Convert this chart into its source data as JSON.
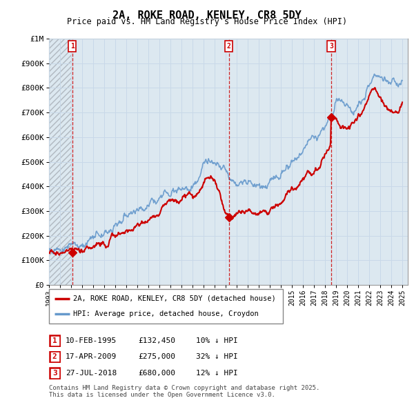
{
  "title": "2A, ROKE ROAD, KENLEY, CR8 5DY",
  "subtitle": "Price paid vs. HM Land Registry's House Price Index (HPI)",
  "ylabel_ticks": [
    "£0",
    "£100K",
    "£200K",
    "£300K",
    "£400K",
    "£500K",
    "£600K",
    "£700K",
    "£800K",
    "£900K",
    "£1M"
  ],
  "ytick_values": [
    0,
    100000,
    200000,
    300000,
    400000,
    500000,
    600000,
    700000,
    800000,
    900000,
    1000000
  ],
  "ylim": [
    0,
    1000000
  ],
  "xlim_start": 1993.0,
  "xlim_end": 2025.5,
  "sales": [
    {
      "date_num": 1995.11,
      "price": 132450,
      "label": "1"
    },
    {
      "date_num": 2009.29,
      "price": 275000,
      "label": "2"
    },
    {
      "date_num": 2018.56,
      "price": 680000,
      "label": "3"
    }
  ],
  "sale_color": "#cc0000",
  "hpi_color": "#6699cc",
  "grid_color": "#c8d8e8",
  "bg_color": "#dce8f0",
  "legend_entries": [
    "2A, ROKE ROAD, KENLEY, CR8 5DY (detached house)",
    "HPI: Average price, detached house, Croydon"
  ],
  "table_rows": [
    {
      "num": "1",
      "date": "10-FEB-1995",
      "price": "£132,450",
      "pct": "10% ↓ HPI"
    },
    {
      "num": "2",
      "date": "17-APR-2009",
      "price": "£275,000",
      "pct": "32% ↓ HPI"
    },
    {
      "num": "3",
      "date": "27-JUL-2018",
      "price": "£680,000",
      "pct": "12% ↓ HPI"
    }
  ],
  "footnote": "Contains HM Land Registry data © Crown copyright and database right 2025.\nThis data is licensed under the Open Government Licence v3.0.",
  "dashed_line_color": "#cc0000",
  "marker_box_color": "#cc0000",
  "hpi_anchors_x": [
    1993.0,
    1993.5,
    1994.0,
    1994.5,
    1995.0,
    1995.5,
    1996.0,
    1996.5,
    1997.0,
    1997.5,
    1998.0,
    1998.5,
    1999.0,
    1999.5,
    2000.0,
    2000.5,
    2001.0,
    2001.5,
    2002.0,
    2002.5,
    2003.0,
    2003.5,
    2004.0,
    2004.5,
    2005.0,
    2005.5,
    2006.0,
    2006.5,
    2007.0,
    2007.5,
    2008.0,
    2008.5,
    2009.0,
    2009.5,
    2010.0,
    2010.5,
    2011.0,
    2011.5,
    2012.0,
    2012.5,
    2013.0,
    2013.5,
    2014.0,
    2014.5,
    2015.0,
    2015.5,
    2016.0,
    2016.5,
    2017.0,
    2017.5,
    2018.0,
    2018.5,
    2019.0,
    2019.5,
    2020.0,
    2020.5,
    2021.0,
    2021.5,
    2022.0,
    2022.5,
    2023.0,
    2023.5,
    2024.0,
    2024.5,
    2025.0
  ],
  "hpi_anchors_y": [
    148000,
    150000,
    155000,
    158000,
    162000,
    165000,
    170000,
    178000,
    188000,
    200000,
    210000,
    222000,
    235000,
    248000,
    262000,
    278000,
    295000,
    310000,
    325000,
    345000,
    365000,
    382000,
    392000,
    398000,
    400000,
    403000,
    408000,
    415000,
    470000,
    490000,
    480000,
    460000,
    435000,
    415000,
    410000,
    420000,
    425000,
    422000,
    415000,
    418000,
    428000,
    445000,
    465000,
    488000,
    510000,
    530000,
    555000,
    580000,
    605000,
    630000,
    648000,
    665000,
    755000,
    745000,
    720000,
    700000,
    730000,
    770000,
    830000,
    870000,
    855000,
    840000,
    830000,
    820000,
    820000
  ],
  "prop_anchors_x": [
    1993.0,
    1993.5,
    1994.0,
    1994.5,
    1995.0,
    1995.11,
    1995.5,
    1996.0,
    1996.5,
    1997.0,
    1997.5,
    1998.0,
    1998.5,
    1999.0,
    1999.5,
    2000.0,
    2000.5,
    2001.0,
    2001.5,
    2002.0,
    2002.5,
    2003.0,
    2003.5,
    2004.0,
    2004.5,
    2005.0,
    2005.5,
    2006.0,
    2006.5,
    2007.0,
    2007.5,
    2008.0,
    2008.5,
    2009.0,
    2009.29,
    2009.5,
    2010.0,
    2010.5,
    2011.0,
    2011.5,
    2012.0,
    2012.5,
    2013.0,
    2013.5,
    2014.0,
    2014.5,
    2015.0,
    2015.5,
    2016.0,
    2016.5,
    2017.0,
    2017.5,
    2018.0,
    2018.5,
    2018.56,
    2019.0,
    2019.5,
    2020.0,
    2020.5,
    2021.0,
    2021.5,
    2022.0,
    2022.5,
    2023.0,
    2023.5,
    2024.0,
    2024.5,
    2025.0
  ],
  "prop_anchors_y": [
    128000,
    130000,
    132000,
    133000,
    132000,
    132450,
    133000,
    136000,
    142000,
    152000,
    162000,
    172000,
    182000,
    192000,
    202000,
    215000,
    228000,
    242000,
    255000,
    268000,
    285000,
    305000,
    322000,
    338000,
    348000,
    352000,
    355000,
    360000,
    368000,
    418000,
    435000,
    425000,
    355000,
    278000,
    275000,
    278000,
    288000,
    295000,
    298000,
    295000,
    290000,
    295000,
    305000,
    320000,
    338000,
    358000,
    378000,
    400000,
    425000,
    452000,
    475000,
    500000,
    532000,
    560000,
    680000,
    668000,
    648000,
    630000,
    655000,
    690000,
    720000,
    770000,
    795000,
    768000,
    730000,
    700000,
    695000,
    720000
  ]
}
